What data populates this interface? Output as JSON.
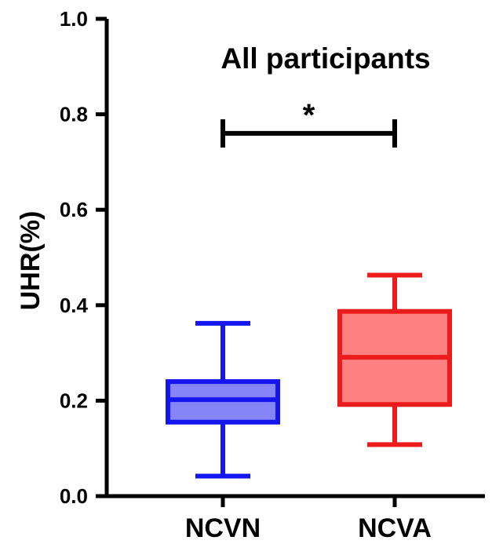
{
  "chart_data": {
    "type": "box",
    "title": "All participants",
    "ylabel": "UHR(%)",
    "xlabel": "",
    "ylim": [
      0,
      1.0
    ],
    "yticks": [
      "0.0",
      "0.2",
      "0.4",
      "0.6",
      "0.8",
      "1.0"
    ],
    "categories": [
      "NCVN",
      "NCVA"
    ],
    "boxes": [
      {
        "category": "NCVN",
        "min": 0.042,
        "q1": 0.155,
        "median": 0.202,
        "q3": 0.24,
        "max": 0.362,
        "color": "#1515f0",
        "fill": "#8585f7"
      },
      {
        "category": "NCVA",
        "min": 0.108,
        "q1": 0.192,
        "median": 0.291,
        "q3": 0.387,
        "max": 0.463,
        "color": "#ec1c1c",
        "fill": "#ff8080"
      }
    ],
    "significance": {
      "between": [
        "NCVN",
        "NCVA"
      ],
      "y": 0.76,
      "label": "*"
    }
  }
}
